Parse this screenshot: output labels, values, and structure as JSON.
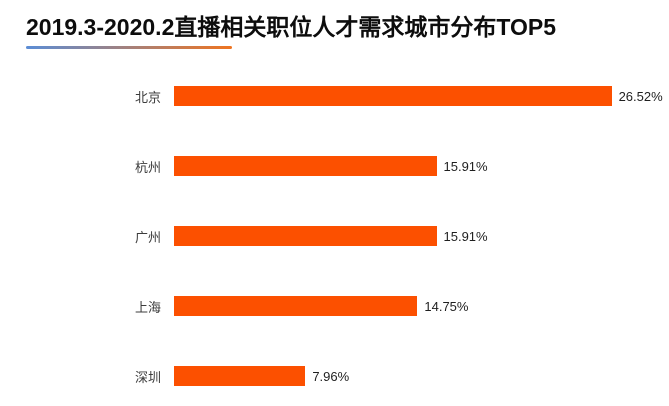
{
  "header": {
    "title": "2019.3-2020.2直播相关职位人才需求城市分布TOP5",
    "underline_gradient_start": "#5b8dd6",
    "underline_gradient_end": "#ef7420"
  },
  "chart_data": {
    "type": "bar",
    "orientation": "horizontal",
    "title": "2019.3-2020.2直播相关职位人才需求城市分布TOP5",
    "categories": [
      "北京",
      "杭州",
      "广州",
      "上海",
      "深圳"
    ],
    "values": [
      26.52,
      15.91,
      15.91,
      14.75,
      7.96
    ],
    "value_labels": [
      "26.52%",
      "15.91%",
      "15.91%",
      "14.75%",
      "7.96%"
    ],
    "unit": "%",
    "xlabel": "",
    "ylabel": "",
    "xlim": [
      0,
      30
    ],
    "bar_color": "#fc5000",
    "grid": false,
    "legend": false
  }
}
